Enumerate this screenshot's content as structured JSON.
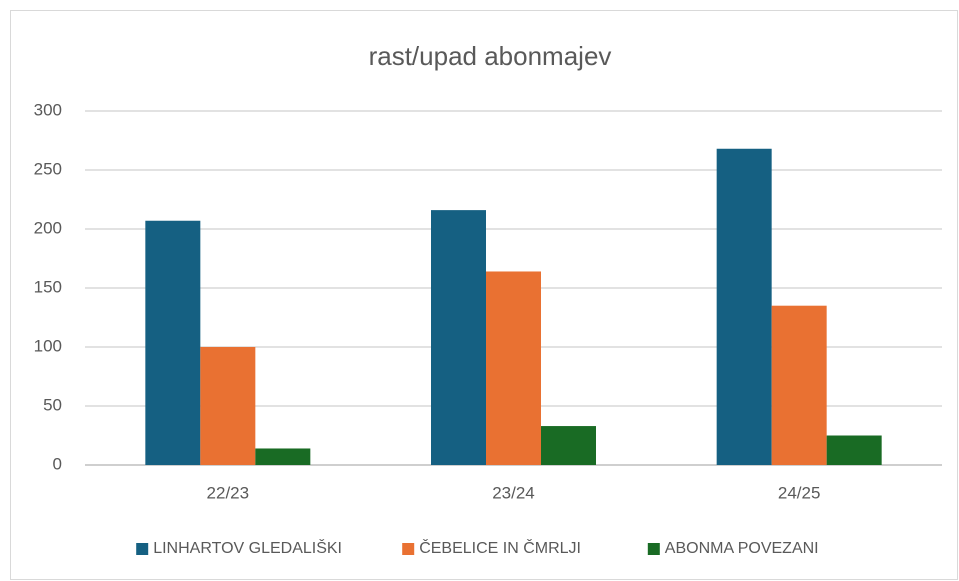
{
  "chart_data": {
    "type": "bar",
    "title": "rast/upad abonmajev",
    "categories": [
      "22/23",
      "23/24",
      "24/25"
    ],
    "series": [
      {
        "name": "LINHARTOV GLEDALIŠKI",
        "color": "#156082",
        "values": [
          207,
          216,
          268
        ]
      },
      {
        "name": "ČEBELICE IN ČMRLJI",
        "color": "#e97132",
        "values": [
          100,
          164,
          135
        ]
      },
      {
        "name": "ABONMA POVEZANI",
        "color": "#196b24",
        "values": [
          14,
          33,
          25
        ]
      }
    ],
    "ylim": [
      0,
      300
    ],
    "yticks": [
      0,
      50,
      100,
      150,
      200,
      250,
      300
    ],
    "grid": true,
    "legend": "bottom"
  }
}
